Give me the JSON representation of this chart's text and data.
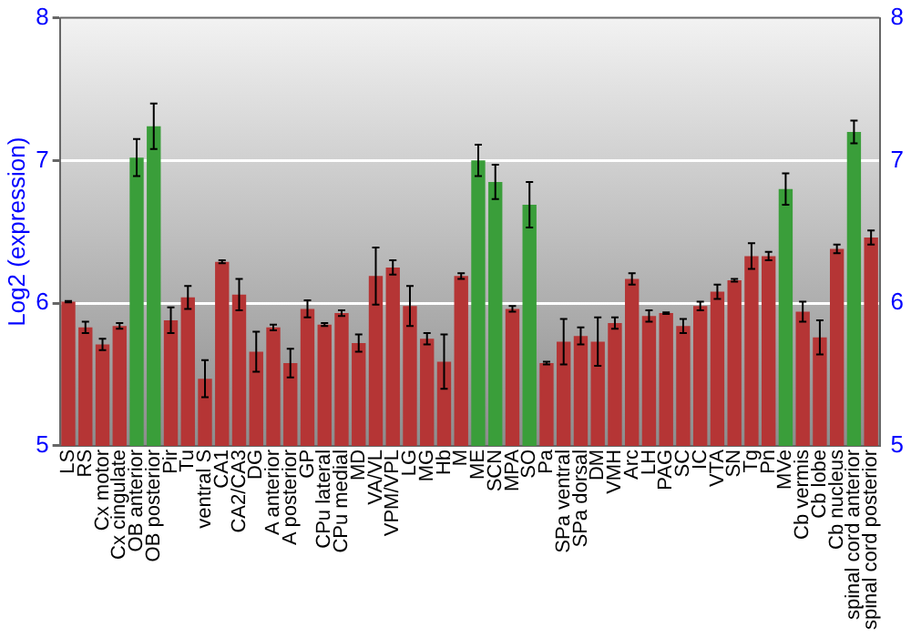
{
  "chart_data": {
    "type": "bar",
    "ylabel": "Log2 (expression)",
    "categories": [
      "LS",
      "RS",
      "Cx motor",
      "Cx cingulate",
      "OB anterior",
      "OB posterior",
      "Pir",
      "Tu",
      "ventral S",
      "CA1",
      "CA2/CA3",
      "DG",
      "A anterior",
      "A posterior",
      "GP",
      "CPu lateral",
      "CPu medial",
      "MD",
      "VA/VL",
      "VPM/VPL",
      "LG",
      "MG",
      "Hb",
      "M",
      "ME",
      "SCN",
      "MPA",
      "SO",
      "Pa",
      "SPa ventral",
      "SPa dorsal",
      "DM",
      "VMH",
      "Arc",
      "LH",
      "PAG",
      "SC",
      "IC",
      "VTA",
      "SN",
      "Tg",
      "Pn",
      "MVe",
      "Cb vermis",
      "Cb lobe",
      "Cb nucleus",
      "spinal cord anterior",
      "spinal cord posterior"
    ],
    "values": [
      6.01,
      5.83,
      5.71,
      5.84,
      7.02,
      7.24,
      5.88,
      6.04,
      5.47,
      6.29,
      6.06,
      5.66,
      5.83,
      5.58,
      5.96,
      5.85,
      5.93,
      5.72,
      6.19,
      6.25,
      5.98,
      5.75,
      5.59,
      6.19,
      7.0,
      6.85,
      5.96,
      6.69,
      5.58,
      5.73,
      5.77,
      5.73,
      5.86,
      6.17,
      5.91,
      5.93,
      5.84,
      5.98,
      6.08,
      6.16,
      6.33,
      6.33,
      6.8,
      5.94,
      5.76,
      6.38,
      7.2,
      6.46
    ],
    "errors": [
      0.005,
      0.04,
      0.04,
      0.02,
      0.13,
      0.16,
      0.09,
      0.08,
      0.13,
      0.01,
      0.11,
      0.14,
      0.02,
      0.1,
      0.06,
      0.01,
      0.02,
      0.06,
      0.2,
      0.05,
      0.14,
      0.04,
      0.19,
      0.02,
      0.11,
      0.12,
      0.02,
      0.16,
      0.01,
      0.16,
      0.06,
      0.17,
      0.04,
      0.04,
      0.04,
      0.005,
      0.05,
      0.03,
      0.05,
      0.01,
      0.09,
      0.03,
      0.11,
      0.07,
      0.12,
      0.03,
      0.08,
      0.05
    ],
    "colors": [
      "#b53535",
      "#b53535",
      "#b53535",
      "#b53535",
      "#3a9e3a",
      "#3a9e3a",
      "#b53535",
      "#b53535",
      "#b53535",
      "#b53535",
      "#b53535",
      "#b53535",
      "#b53535",
      "#b53535",
      "#b53535",
      "#b53535",
      "#b53535",
      "#b53535",
      "#b53535",
      "#b53535",
      "#b53535",
      "#b53535",
      "#b53535",
      "#b53535",
      "#3a9e3a",
      "#3a9e3a",
      "#b53535",
      "#3a9e3a",
      "#b53535",
      "#b53535",
      "#b53535",
      "#b53535",
      "#b53535",
      "#b53535",
      "#b53535",
      "#b53535",
      "#b53535",
      "#b53535",
      "#b53535",
      "#b53535",
      "#b53535",
      "#b53535",
      "#3a9e3a",
      "#b53535",
      "#b53535",
      "#b53535",
      "#3a9e3a",
      "#b53535"
    ],
    "ylim": [
      5,
      8
    ],
    "yticks": [
      5,
      6,
      7,
      8
    ],
    "y2lim": [
      5,
      8
    ],
    "y2ticks": [
      5,
      6,
      7,
      8
    ],
    "grid": "y",
    "legend": false
  }
}
